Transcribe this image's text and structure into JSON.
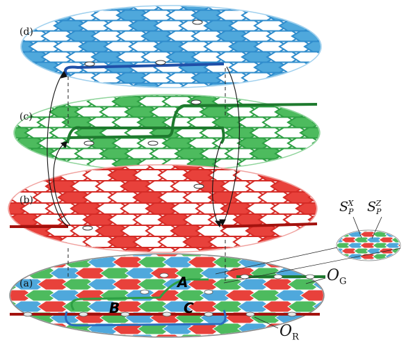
{
  "panels": [
    {
      "id": "d",
      "label": "(d)",
      "colors": [
        "#4fa8dc"
      ],
      "edge": "#2f8ccc"
    },
    {
      "id": "c",
      "label": "(c)",
      "colors": [
        "#4dbb5e"
      ],
      "edge": "#2ea044"
    },
    {
      "id": "b",
      "label": "(b)",
      "colors": [
        "#e8413b"
      ],
      "edge": "#d52b26"
    },
    {
      "id": "a",
      "label": "(a)",
      "colors": [
        "#e8413b",
        "#4dbb5e",
        "#4fa8dc"
      ],
      "edge": "#555555"
    }
  ],
  "plaquette_labels": {
    "A": "A",
    "B": "B",
    "C": "C"
  },
  "operators": {
    "S_X": {
      "base": "S",
      "sub": "P",
      "sup": "X"
    },
    "S_Z": {
      "base": "S",
      "sub": "P",
      "sup": "Z"
    },
    "O_G": {
      "base": "O",
      "sub": "G"
    },
    "O_R": {
      "base": "O",
      "sub": "R"
    }
  },
  "colors": {
    "red": "#e8413b",
    "green": "#4dbb5e",
    "blue": "#4fa8dc",
    "dark_green": "#1e7a2e",
    "dark_blue": "#1f4fa8",
    "dark_red": "#a3120e"
  }
}
